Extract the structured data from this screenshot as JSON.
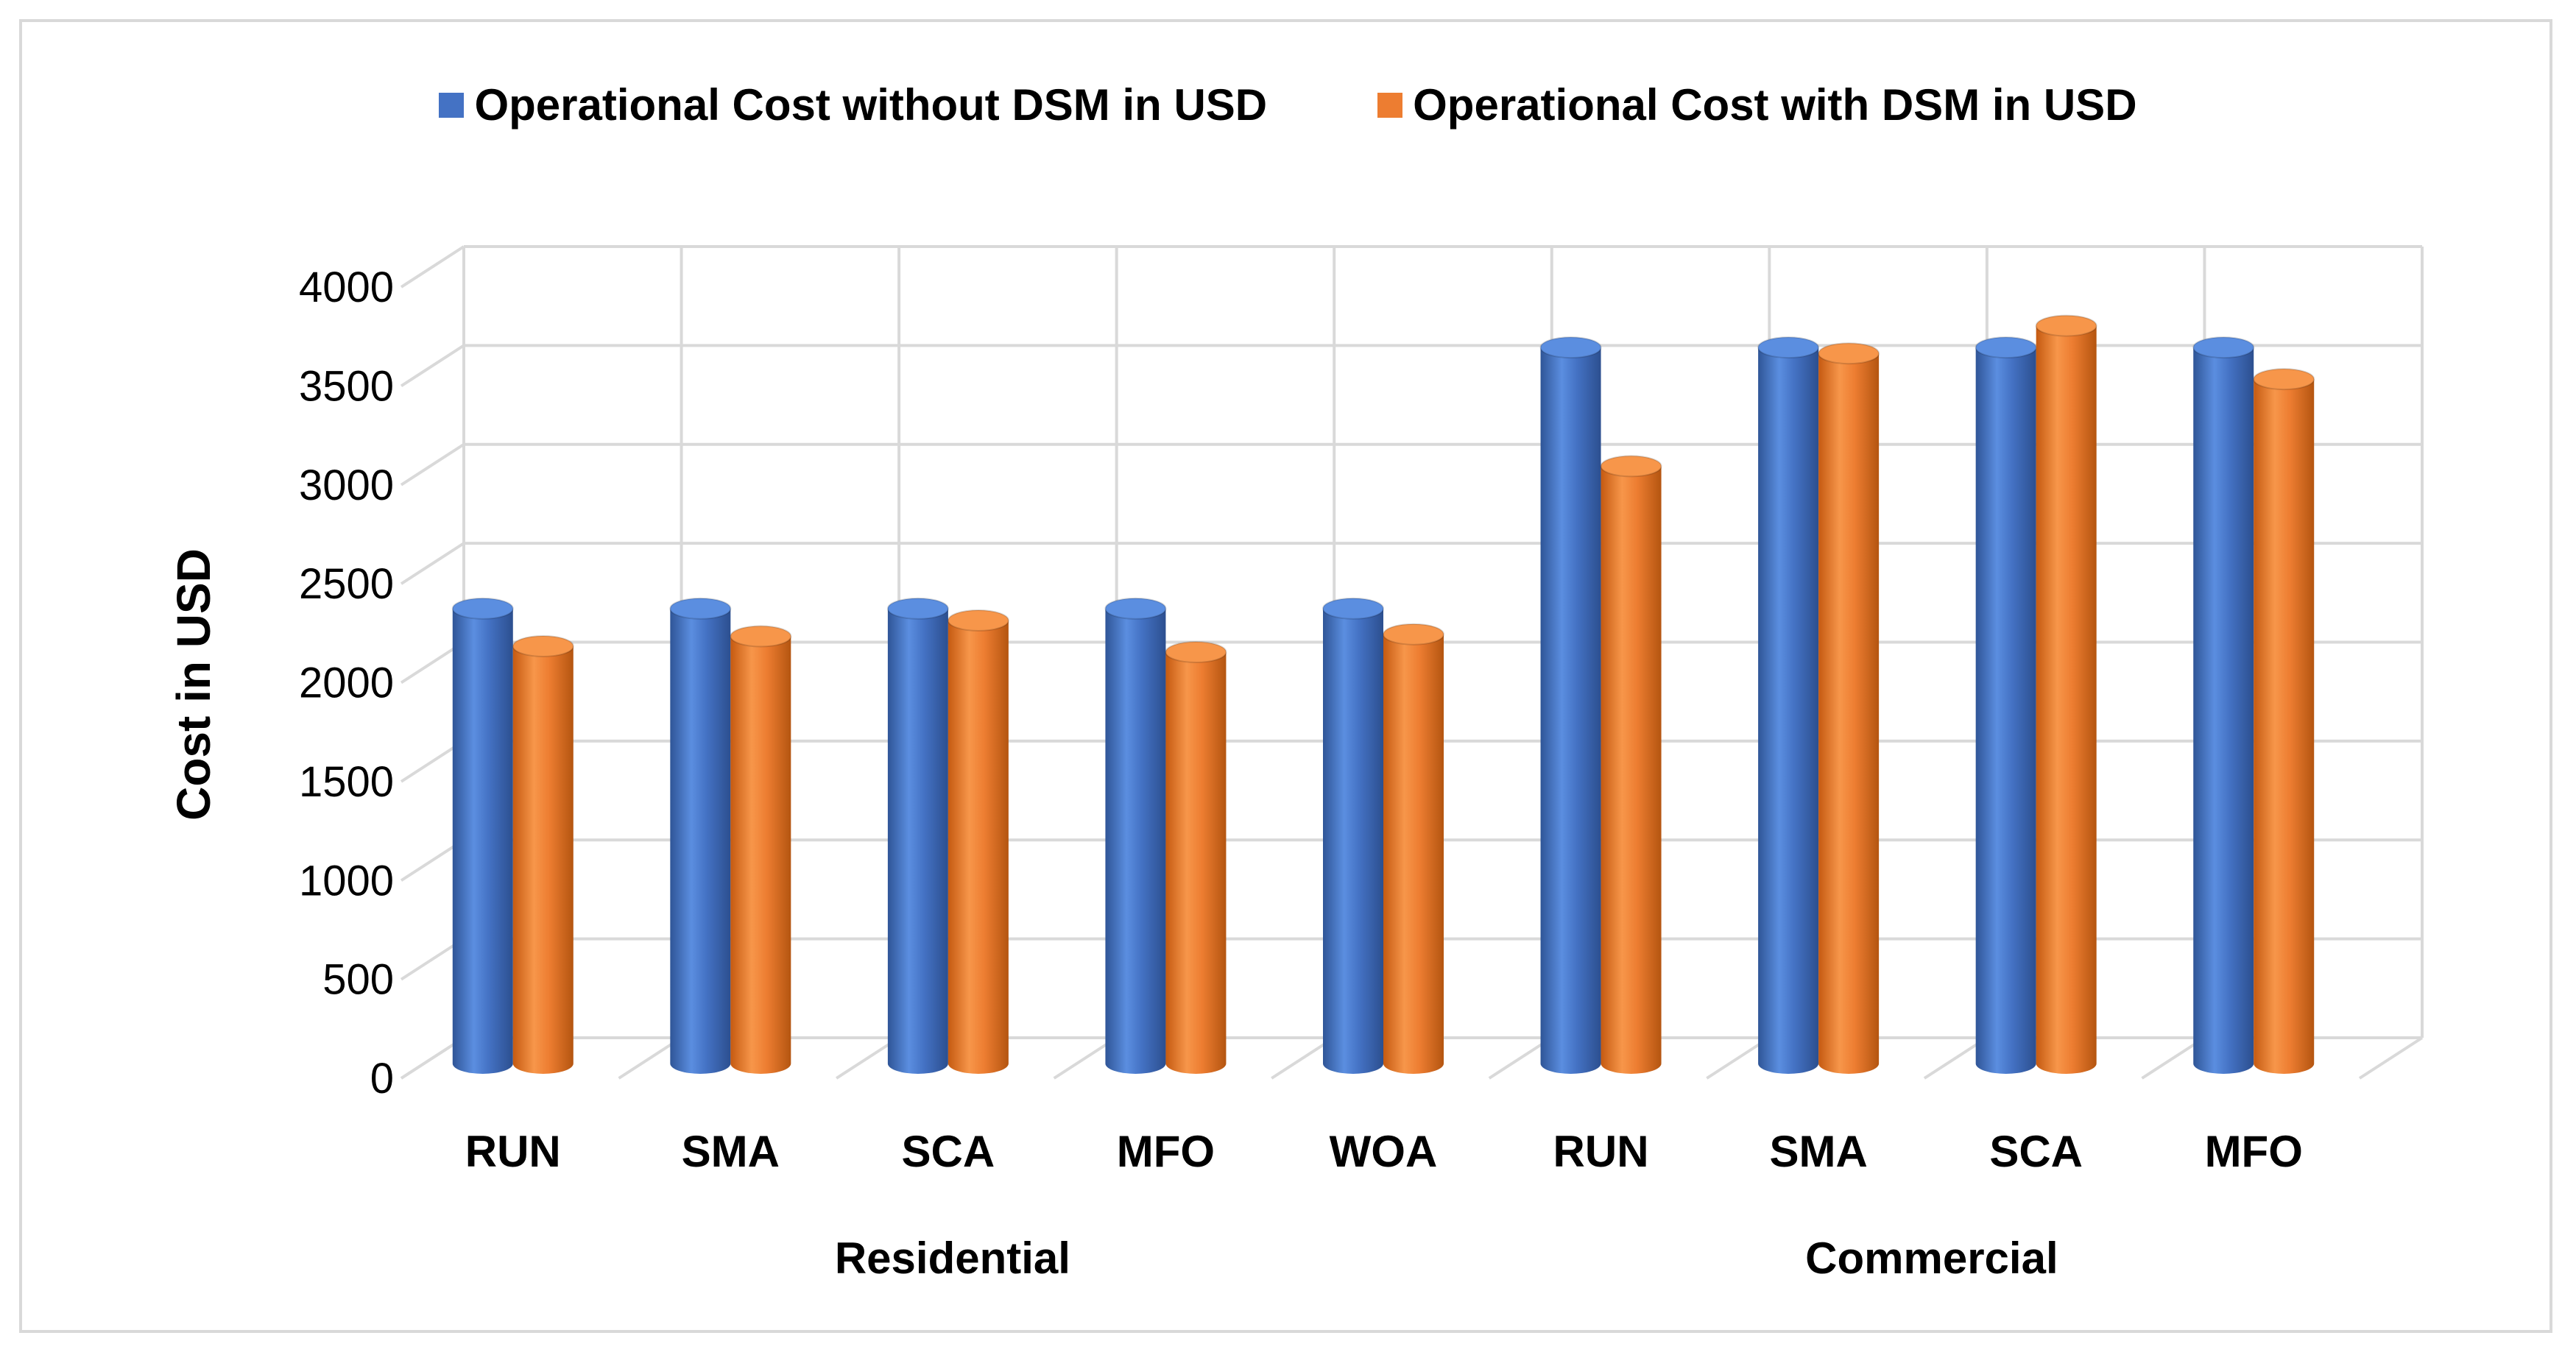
{
  "chart_data": {
    "type": "bar",
    "title": "",
    "xlabel": "",
    "ylabel": "Cost in USD",
    "ylim": [
      0,
      4000
    ],
    "yticks": [
      "0",
      "500",
      "1000",
      "1500",
      "2000",
      "2500",
      "3000",
      "3500",
      "4000"
    ],
    "categories": [
      "RUN",
      "SMA",
      "SCA",
      "MFO",
      "WOA",
      "RUN",
      "SMA",
      "SCA",
      "MFO"
    ],
    "groups": [
      {
        "label": "Residential",
        "start": 0,
        "end": 4
      },
      {
        "label": "Commercial",
        "start": 5,
        "end": 8
      }
    ],
    "series": [
      {
        "name": "Operational Cost without DSM in USD",
        "color": "#4472C4",
        "values": [
          2300,
          2300,
          2300,
          2300,
          2300,
          3620,
          3620,
          3620,
          3620
        ]
      },
      {
        "name": "Operational Cost with DSM in USD",
        "color": "#ED7D31",
        "values": [
          2110,
          2160,
          2240,
          2080,
          2170,
          3020,
          3590,
          3730,
          3460
        ]
      }
    ],
    "legend_position": "top-center",
    "grid": true
  }
}
